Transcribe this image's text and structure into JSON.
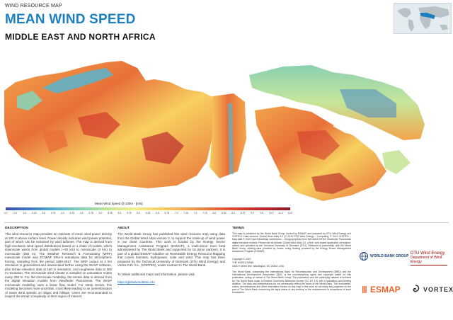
{
  "header": {
    "kicker": "WIND RESOURCE MAP",
    "title": "MEAN WIND SPEED",
    "subtitle": "MIDDLE EAST AND NORTH AFRICA"
  },
  "legend": {
    "title": "Mean Wind Speed @ 100m - [m/s]",
    "ticks": [
      "0.0",
      "2.5",
      "3.0",
      "3.25",
      "3.5",
      "3.75",
      "4.0",
      "4.25",
      "4.5",
      "4.75",
      "5.0",
      "5.25",
      "5.5",
      "5.75",
      "6.0",
      "6.25",
      "6.5",
      "6.75",
      "7.0",
      "7.25",
      "7.5",
      "7.75",
      "8.0",
      "8.25",
      "8.5",
      "8.75",
      "9.0",
      "9.5",
      "10.0",
      "11.0",
      "13.0"
    ]
  },
  "colors": {
    "title_blue": "#1c7fc0",
    "dtu_red": "#990000",
    "esmap_orange": "#e8642b"
  },
  "description": {
    "heading": "DESCRIPTION",
    "text": "This wind resource map provides an estimate of mean wind power density at 100 m above surface level. Power density indicates wind power potential, part of which can be extracted by wind turbines. The map is derived from high-resolution wind speed distributions based on a chain of models, which downscale winds from global models (~30 km) to mesoscale (3 km) to microscale (250 m). The Weather Research & Forecasting (WRF) mesoscale model was ECMWF ERA-5 reanalysis data for atmospheric forcing, sampling from the period 1990-2017. The WRF output at 3 km resolution is generalized and downscaled further using the WAsP software, plus terrain elevation data at 150 m resolution, and roughness data at 300 m resolution. The microscale wind climate is sampled on calculation nodes every 250 m. For the microscale modeling, the terrain data is derived from the digital elevation models from Viewfinder Panoramas. The WAsP microscale modeling uses a linear flow model. For steep terrain, this modeling becomes more uncertain, most likely leading to an overestimation of mean wind speeds on ridges and hilltops. Users are recommended to inspect the terrain complexity of their region of interest."
  },
  "about": {
    "heading": "ABOUT",
    "text": "The World Bank Group has published this wind resource map using data from the Global Wind Atlas version 3, to support the scale-up of wind power in our client countries. This work is funded by the Energy Sector Management Assistance Program (ESMAP), a multi-donor trust fund administered by The World Bank and supported by 18 donor partners. It is part of a global ESMAP initiative on Renewable Energy Resource Mapping that covers biomass, hydropower, solar and wind. This map has been prepared by the Technical University of Denmark (DTU Wind Energy) and Vortex FdC S.L. (VORTEX), under contract to The World Bank.",
    "more_info": "To obtain additional maps and information, please visit:",
    "link": "https://globalwindatlas.info"
  },
  "terms": {
    "heading": "TERMS",
    "text": "This map is published by the World Bank Group, funded by ESMAP, and prepared by DTU Wind Energy and VORTEX. Data sources: Global Wind Atlas 3.0 (© 2019 DTU Wind Energy – Computing, © 2019 VORTEX – Map data © 2019 OpenStreetMap contributors – Geography/data from the NASA SRTM; Viewfinder Panoramas digital elevation models. Please cite as follows: Global Wind Atlas 3.0, a free, web-based application developed, owned and operated by the Technical University of Denmark (DTU). Released in partnership with the World Bank Group, utilizing data provided by Vortex, using funding provided by the Energy Sector Management Assistance Program (ESMAP).",
    "copyright": "Copyright © 2019",
    "org_line1": "THE WORLD BANK",
    "org_line2": "1818 H Street NW, Washington, DC 20433, USA",
    "disclaimer": "The World Bank, comprising the International Bank for Reconstruction and Development (IBRD) and the International Development Association (IDA), is the commissioning agent and copyright holder for this publication, acting on behalf of The World Bank Group. The publication and the underlying dataset is licensed by The World Bank under a Creative Commons Attribution license (CC BY 4.0) with a mandatory and binding addition. The data and interpretations do not necessarily reflect the views of the World Bank. The boundaries, colors, denominations and other information shown on any map in this work do not imply any judgment on the part of The World Bank concerning the legal status of any territory or the endorsement or acceptance of such boundaries."
  },
  "logos": {
    "world_bank": "WORLD BANK GROUP",
    "dtu_line1": "DTU Wind Energy",
    "dtu_line2": "Department of Wind Energy",
    "esmap": "ESMAP",
    "vortex": "VORTEX"
  }
}
